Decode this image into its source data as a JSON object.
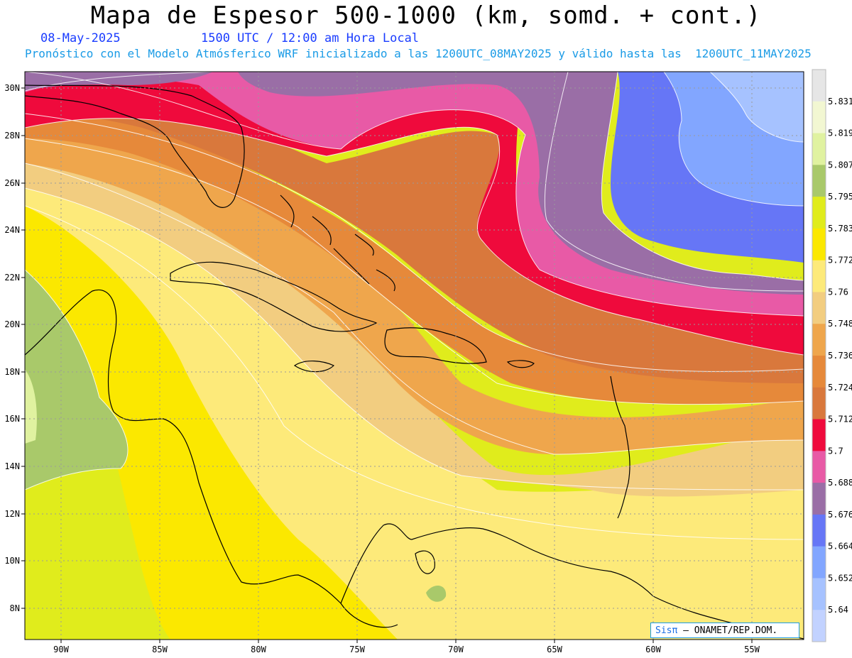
{
  "header": {
    "title": "Mapa de Espesor 500-1000 (km, somd. + cont.)",
    "date": "08-May-2025",
    "time": "1500 UTC / 12:00 am Hora Local",
    "subtitle": "Pronóstico con el Modelo Atmósferico WRF inicializado a las 1200UTC_08MAY2025 y válido hasta las  1200UTC_11MAY2025"
  },
  "map": {
    "lon_labels": [
      "90W",
      "85W",
      "80W",
      "75W",
      "70W",
      "65W",
      "60W",
      "55W"
    ],
    "lat_labels": [
      "30N",
      "28N",
      "26N",
      "24N",
      "22N",
      "20N",
      "18N",
      "16N",
      "14N",
      "12N",
      "10N",
      "8N"
    ]
  },
  "colorbar": {
    "levels": [
      "5.831",
      "5.819",
      "5.807",
      "5.795",
      "5.783",
      "5.772",
      "5.76",
      "5.748",
      "5.736",
      "5.724",
      "5.712",
      "5.7",
      "5.688",
      "5.676",
      "5.664",
      "5.652",
      "5.64"
    ],
    "colors": [
      "#e6e6e6",
      "#f2f7d2",
      "#e0f2a0",
      "#a9c96a",
      "#e0ec1c",
      "#fbe800",
      "#fdea7a",
      "#f2cd80",
      "#efa64c",
      "#e6893a",
      "#d9783c",
      "#ef0a3c",
      "#e85aa6",
      "#9a6ea6",
      "#6676f6",
      "#82a6ff",
      "#a6c2ff",
      "#c2d2ff"
    ]
  },
  "credit": {
    "logo": "Sisπ",
    "text": "– ONAMET/REP.DOM."
  }
}
